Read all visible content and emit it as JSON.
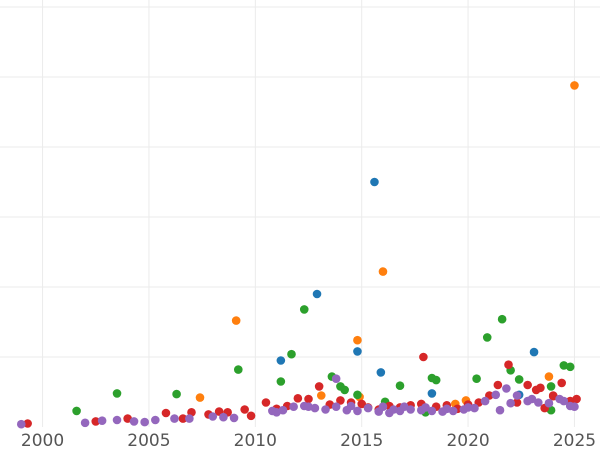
{
  "chart_data": {
    "type": "scatter",
    "title": "",
    "xlabel": "",
    "ylabel": "",
    "xlim": [
      1998,
      2026.2
    ],
    "ylim": [
      0,
      61
    ],
    "x_ticks": [
      2000,
      2005,
      2010,
      2015,
      2020,
      2025
    ],
    "x_tick_labels": [
      "2000",
      "2005",
      "2010",
      "2015",
      "2020",
      "2025"
    ],
    "y_gridlines": [
      10,
      20,
      30,
      40,
      50,
      60
    ],
    "grid": true,
    "legend": "none",
    "colors": [
      "#1f77b4",
      "#ff7f0e",
      "#2ca02c",
      "#d62728",
      "#9467bd"
    ],
    "series": [
      {
        "color": "#1f77b4",
        "points": [
          [
            2011.2,
            9.5
          ],
          [
            2012.9,
            19
          ],
          [
            2014.8,
            10.8
          ],
          [
            2015.6,
            35
          ],
          [
            2015.9,
            7.8
          ],
          [
            2023.1,
            10.7
          ],
          [
            2022.4,
            4.6
          ],
          [
            2018.3,
            4.8
          ]
        ]
      },
      {
        "color": "#ff7f0e",
        "points": [
          [
            2009.1,
            15.2
          ],
          [
            2007.4,
            4.2
          ],
          [
            2014.8,
            12.4
          ],
          [
            2016.0,
            22.2
          ],
          [
            2025.0,
            48.8
          ],
          [
            2023.8,
            7.2
          ],
          [
            2019.9,
            3.8
          ],
          [
            2013.1,
            4.5
          ],
          [
            2019.4,
            3.3
          ],
          [
            2014.9,
            4.3
          ]
        ]
      },
      {
        "color": "#2ca02c",
        "points": [
          [
            2001.6,
            2.3
          ],
          [
            2003.5,
            4.8
          ],
          [
            2006.3,
            4.7
          ],
          [
            2009.2,
            8.2
          ],
          [
            2011.2,
            6.5
          ],
          [
            2011.7,
            10.4
          ],
          [
            2012.3,
            16.8
          ],
          [
            2013.6,
            7.2
          ],
          [
            2014.0,
            5.8
          ],
          [
            2014.2,
            5.3
          ],
          [
            2014.8,
            4.6
          ],
          [
            2016.1,
            3.6
          ],
          [
            2016.8,
            5.9
          ],
          [
            2018.3,
            7.0
          ],
          [
            2018.5,
            6.7
          ],
          [
            2020.4,
            6.9
          ],
          [
            2020.9,
            12.8
          ],
          [
            2021.6,
            15.4
          ],
          [
            2022.0,
            8.1
          ],
          [
            2022.4,
            6.8
          ],
          [
            2023.9,
            5.8
          ],
          [
            2024.5,
            8.8
          ],
          [
            2024.8,
            8.6
          ],
          [
            2023.9,
            2.4
          ],
          [
            2018.0,
            2.1
          ]
        ]
      },
      {
        "color": "#d62728",
        "points": [
          [
            1999.3,
            0.5
          ],
          [
            2002.5,
            0.8
          ],
          [
            2004.0,
            1.2
          ],
          [
            2005.8,
            2.0
          ],
          [
            2006.6,
            1.2
          ],
          [
            2007.0,
            2.1
          ],
          [
            2007.8,
            1.8
          ],
          [
            2008.3,
            2.2
          ],
          [
            2008.7,
            2.1
          ],
          [
            2009.5,
            2.5
          ],
          [
            2009.8,
            1.6
          ],
          [
            2010.5,
            3.5
          ],
          [
            2011.0,
            2.6
          ],
          [
            2011.5,
            3.0
          ],
          [
            2012.0,
            4.1
          ],
          [
            2012.5,
            4.0
          ],
          [
            2013.0,
            5.8
          ],
          [
            2013.5,
            3.2
          ],
          [
            2014.0,
            3.8
          ],
          [
            2014.5,
            3.5
          ],
          [
            2015.0,
            3.3
          ],
          [
            2015.3,
            2.8
          ],
          [
            2015.8,
            2.5
          ],
          [
            2016.3,
            3.0
          ],
          [
            2016.8,
            2.8
          ],
          [
            2017.3,
            3.1
          ],
          [
            2017.8,
            3.3
          ],
          [
            2017.9,
            10.0
          ],
          [
            2018.5,
            2.9
          ],
          [
            2019.0,
            3.1
          ],
          [
            2019.5,
            2.6
          ],
          [
            2020.0,
            3.2
          ],
          [
            2020.5,
            3.5
          ],
          [
            2021.0,
            4.5
          ],
          [
            2021.4,
            6.0
          ],
          [
            2021.9,
            8.9
          ],
          [
            2022.3,
            3.5
          ],
          [
            2022.8,
            6.0
          ],
          [
            2023.2,
            5.3
          ],
          [
            2023.6,
            2.7
          ],
          [
            2024.0,
            4.5
          ],
          [
            2024.4,
            6.3
          ],
          [
            2024.8,
            3.7
          ],
          [
            2025.1,
            4.0
          ],
          [
            2023.4,
            5.6
          ],
          [
            2024.0,
            4.4
          ]
        ]
      },
      {
        "color": "#9467bd",
        "points": [
          [
            1999.0,
            0.4
          ],
          [
            2002.0,
            0.6
          ],
          [
            2002.8,
            0.9
          ],
          [
            2003.5,
            1.0
          ],
          [
            2004.3,
            0.8
          ],
          [
            2004.8,
            0.7
          ],
          [
            2005.3,
            1.0
          ],
          [
            2006.2,
            1.2
          ],
          [
            2006.9,
            1.2
          ],
          [
            2008.0,
            1.5
          ],
          [
            2008.5,
            1.4
          ],
          [
            2009.0,
            1.3
          ],
          [
            2010.8,
            2.3
          ],
          [
            2011.3,
            2.4
          ],
          [
            2011.8,
            2.9
          ],
          [
            2012.3,
            3.0
          ],
          [
            2012.8,
            2.7
          ],
          [
            2013.3,
            2.5
          ],
          [
            2013.8,
            2.9
          ],
          [
            2014.3,
            2.4
          ],
          [
            2014.8,
            2.3
          ],
          [
            2015.3,
            2.7
          ],
          [
            2015.8,
            2.2
          ],
          [
            2016.3,
            2.0
          ],
          [
            2016.8,
            2.3
          ],
          [
            2017.3,
            2.5
          ],
          [
            2017.8,
            2.4
          ],
          [
            2018.3,
            2.3
          ],
          [
            2018.8,
            2.2
          ],
          [
            2019.3,
            2.3
          ],
          [
            2019.8,
            2.5
          ],
          [
            2020.3,
            2.7
          ],
          [
            2020.8,
            3.7
          ],
          [
            2021.3,
            4.6
          ],
          [
            2021.8,
            5.5
          ],
          [
            2022.3,
            4.5
          ],
          [
            2022.8,
            3.7
          ],
          [
            2023.3,
            3.5
          ],
          [
            2023.8,
            3.4
          ],
          [
            2024.3,
            4.0
          ],
          [
            2024.8,
            3.0
          ],
          [
            2013.8,
            6.9
          ],
          [
            2011.0,
            2.1
          ],
          [
            2012.5,
            2.9
          ],
          [
            2016.0,
            2.9
          ],
          [
            2017.0,
            2.9
          ],
          [
            2019.0,
            2.6
          ],
          [
            2020.0,
            2.8
          ],
          [
            2021.5,
            2.4
          ],
          [
            2023.0,
            4.0
          ],
          [
            2024.5,
            3.7
          ],
          [
            2025.0,
            2.9
          ],
          [
            2014.5,
            3.0
          ],
          [
            2016.5,
            2.5
          ],
          [
            2018.0,
            2.8
          ],
          [
            2022.0,
            3.4
          ]
        ]
      }
    ]
  }
}
